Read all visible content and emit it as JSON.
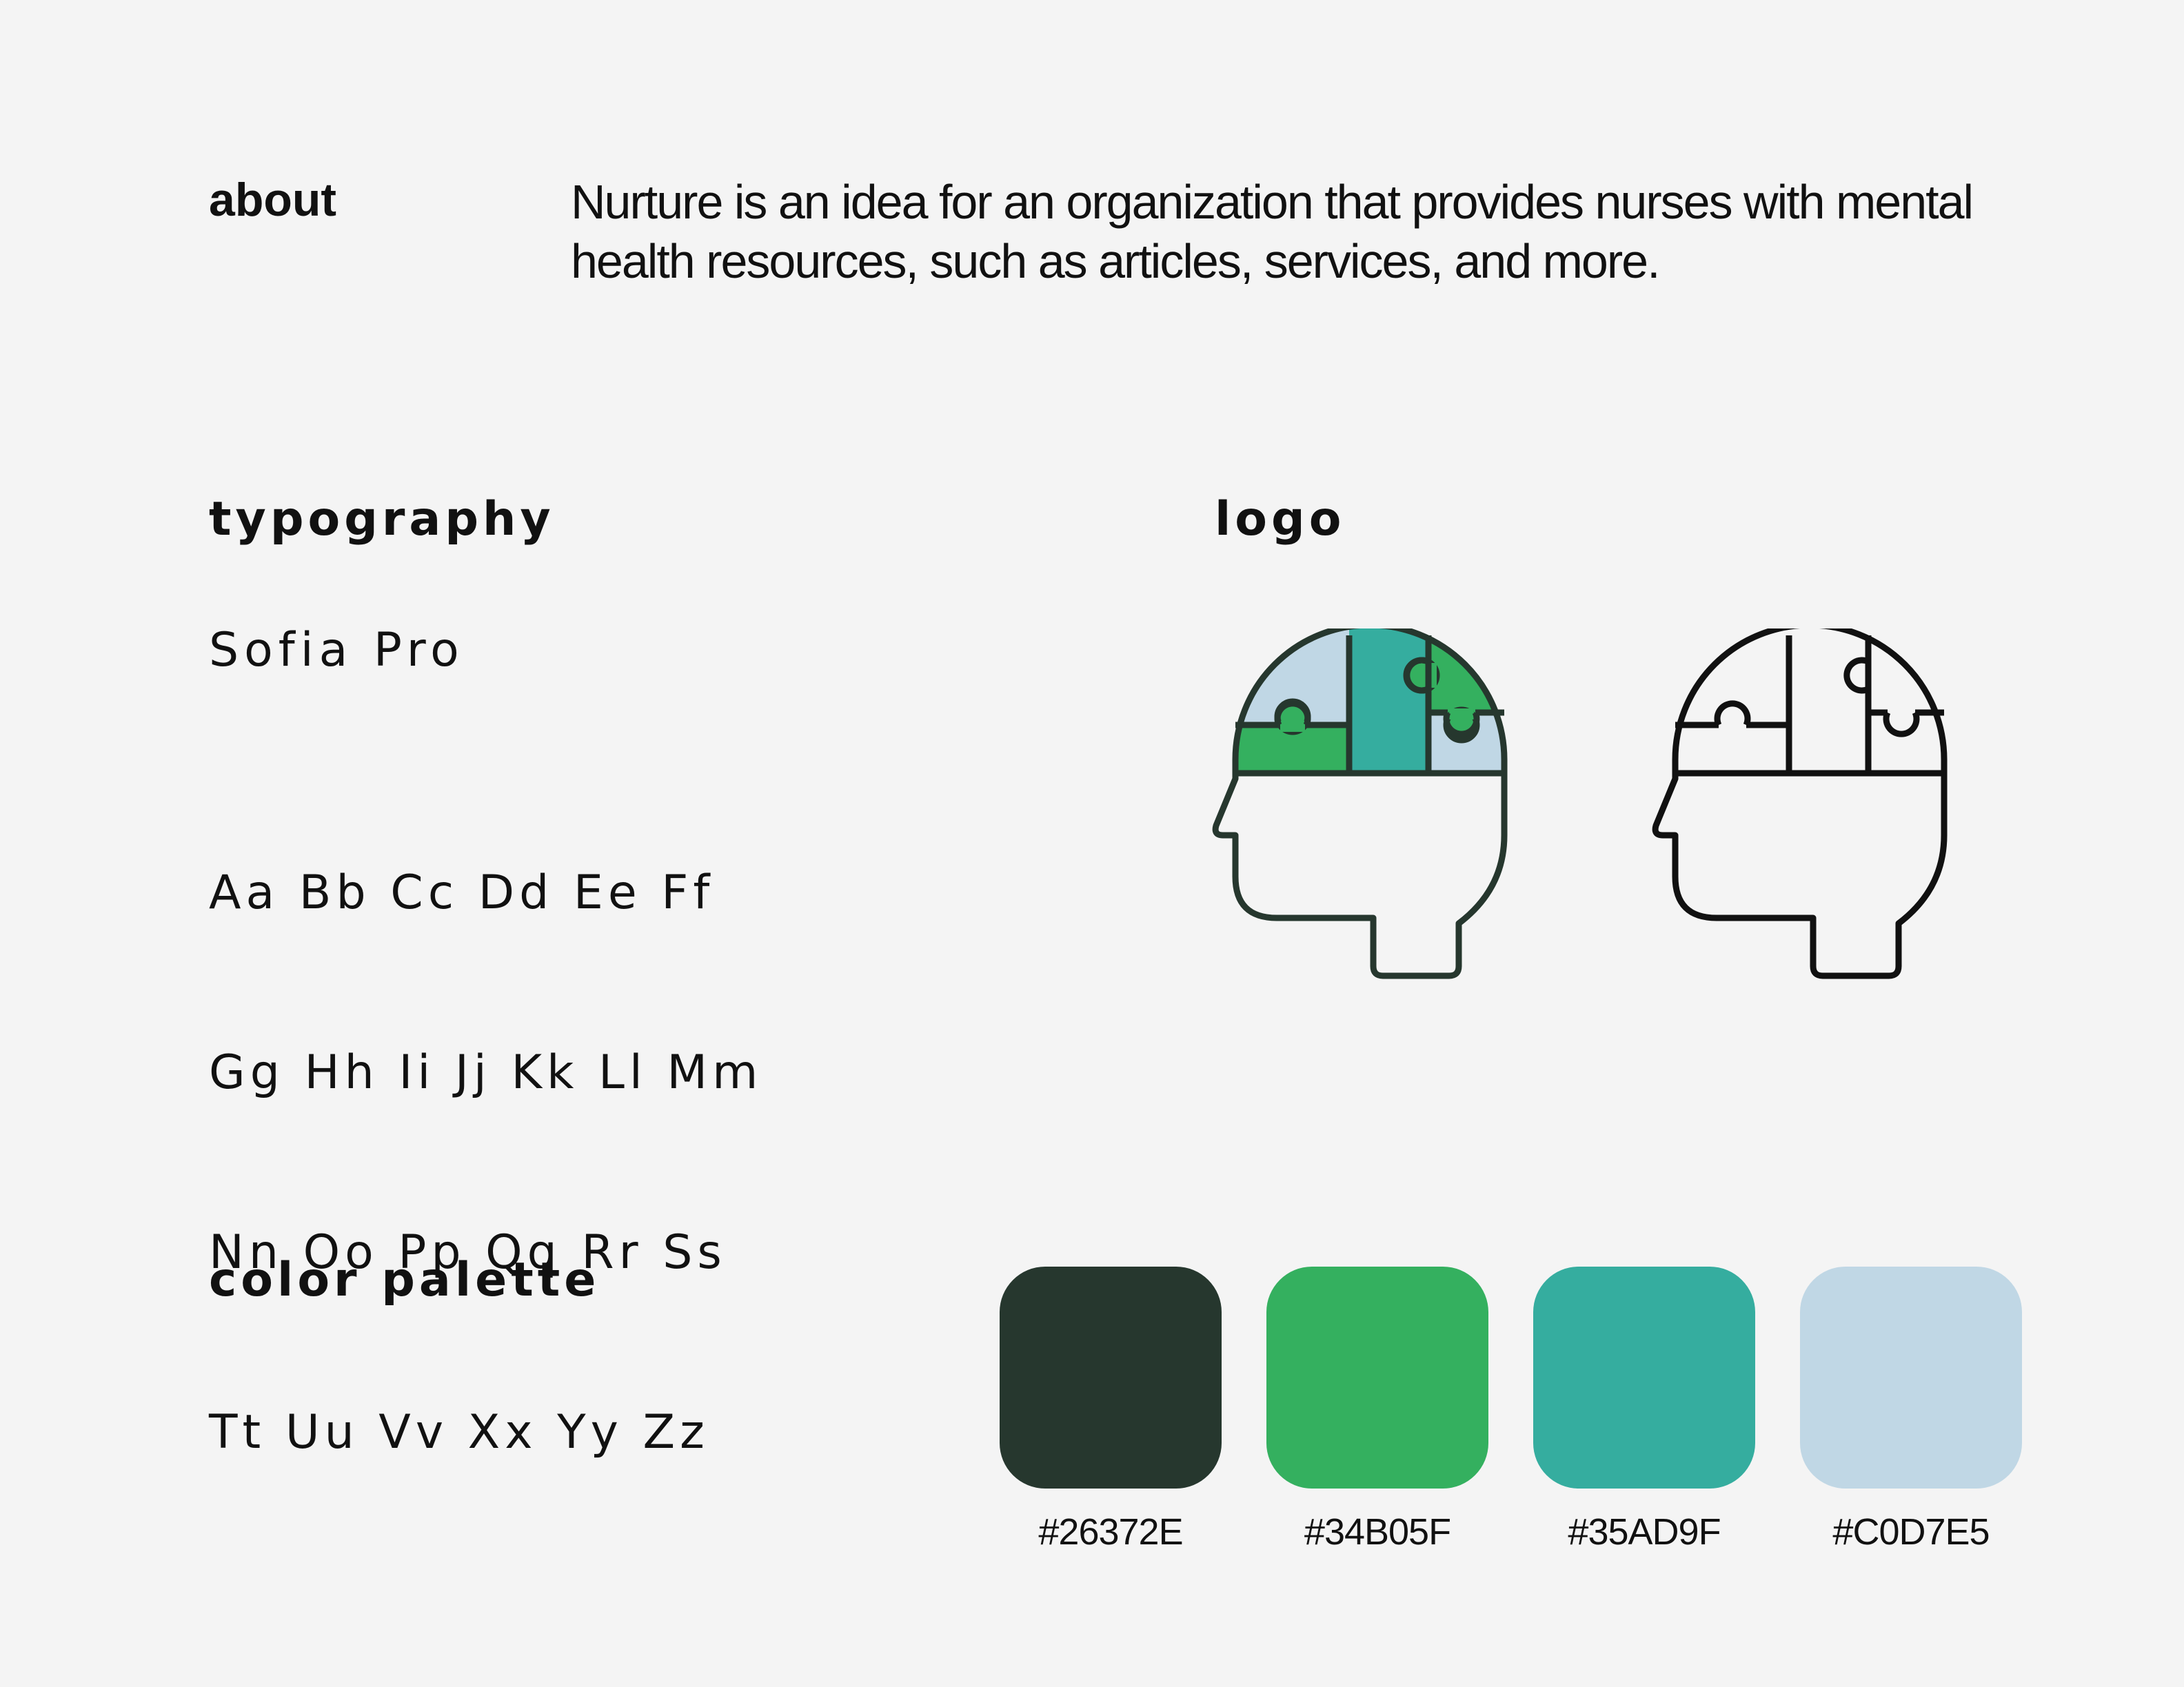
{
  "about": {
    "heading": "about",
    "text": "Nurture is an idea for an organization that provides nurses with mental health resources, such as articles, services, and more."
  },
  "typography": {
    "heading": "typography",
    "font_name": "Sofia Pro",
    "specimen": [
      "Aa Bb Cc Dd Ee Ff",
      "Gg Hh Ii Jj Kk Ll Mm",
      "Nn Oo Pp Qq Rr Ss",
      "Tt Uu Vv Xx Yy Zz"
    ]
  },
  "logo": {
    "heading": "logo",
    "icon_name": "head-with-puzzle-brain-icon"
  },
  "palette": {
    "heading": "color palette",
    "colors": [
      {
        "hex": "#26372E",
        "label": "#26372E"
      },
      {
        "hex": "#34B05F",
        "label": "#34B05F"
      },
      {
        "hex": "#35AD9F",
        "label": "#35AD9F"
      },
      {
        "hex": "#C0D7E5",
        "label": "#C0D7E5"
      }
    ]
  }
}
